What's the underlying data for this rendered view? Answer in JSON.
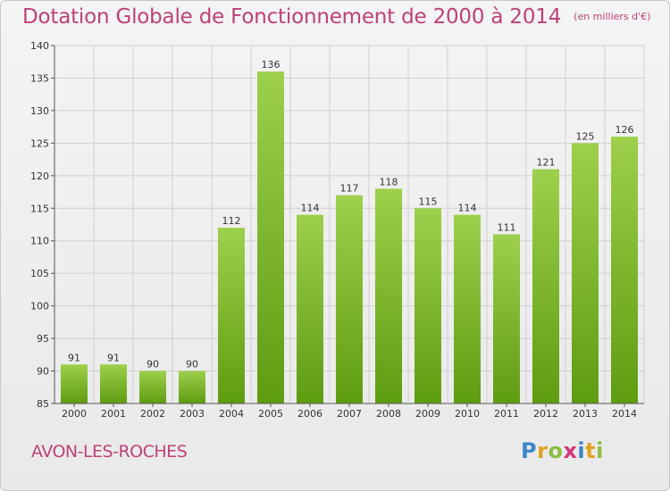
{
  "title": "Dotation Globale de Fonctionnement de 2000 à 2014",
  "unit_note": "(en milliers d'€)",
  "place_name": "AVON-LES-ROCHES",
  "logo": {
    "letters": [
      {
        "ch": "P",
        "color": "#3a86c8"
      },
      {
        "ch": "r",
        "color": "#e0a020"
      },
      {
        "ch": "o",
        "color": "#8cbf3f"
      },
      {
        "ch": "x",
        "color": "#d7357a"
      },
      {
        "ch": "i",
        "color": "#3a86c8"
      },
      {
        "ch": "t",
        "color": "#e0a020"
      },
      {
        "ch": "i",
        "color": "#8cbf3f"
      }
    ]
  },
  "colors": {
    "accent": "#c0407a",
    "bar_light": "#9dd04c",
    "bar_dark": "#5e9c10",
    "grid": "#d0d0d0"
  },
  "chart_data": {
    "type": "bar",
    "title": "Dotation Globale de Fonctionnement de 2000 à 2014",
    "subtitle": "(en milliers d'€)",
    "xlabel": "",
    "ylabel": "",
    "categories": [
      "2000",
      "2001",
      "2002",
      "2003",
      "2004",
      "2005",
      "2006",
      "2007",
      "2008",
      "2009",
      "2010",
      "2011",
      "2012",
      "2013",
      "2014"
    ],
    "values": [
      91,
      91,
      90,
      90,
      112,
      136,
      114,
      117,
      118,
      115,
      114,
      111,
      121,
      125,
      126
    ],
    "ylim": [
      85,
      140
    ],
    "yticks": [
      85,
      90,
      95,
      100,
      105,
      110,
      115,
      120,
      125,
      130,
      135,
      140
    ],
    "grid": true,
    "data_labels": true
  }
}
